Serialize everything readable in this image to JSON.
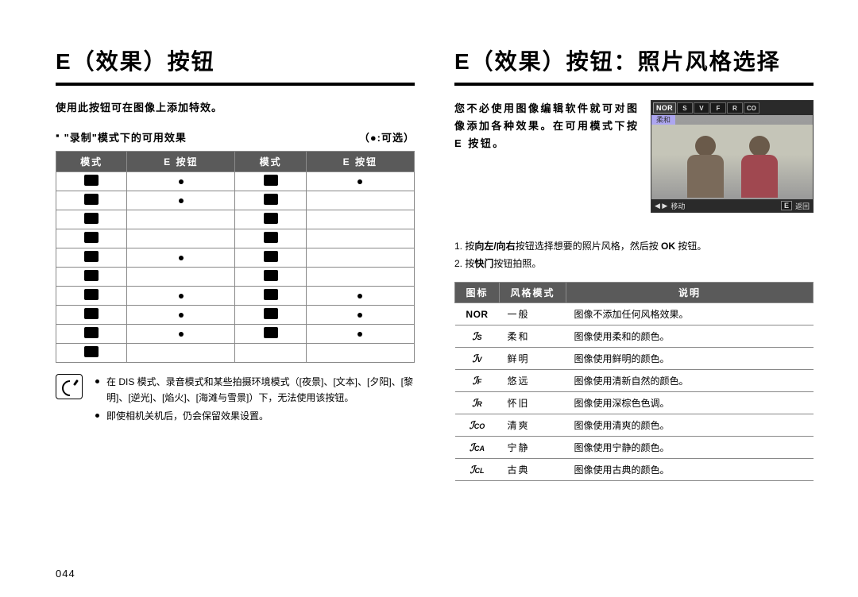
{
  "page_number": "044",
  "left": {
    "heading": "E（效果）按钮",
    "intro": "使用此按钮可在图像上添加特效。",
    "bullet_label": "\"录制\"模式下的可用效果",
    "bullet_right": "（●:可选）",
    "table_headers": [
      "模式",
      "E 按钮",
      "模式",
      "E 按钮"
    ],
    "rows": [
      {
        "l_icon": true,
        "l_dot": true,
        "r_icon": true,
        "r_dot": true
      },
      {
        "l_icon": true,
        "l_dot": true,
        "r_icon": true,
        "r_dot": false
      },
      {
        "l_icon": true,
        "l_dot": false,
        "r_icon": true,
        "r_dot": false
      },
      {
        "l_icon": true,
        "l_dot": false,
        "r_icon": true,
        "r_dot": false
      },
      {
        "l_icon": true,
        "l_dot": true,
        "r_icon": true,
        "r_dot": false
      },
      {
        "l_icon": true,
        "l_dot": false,
        "r_icon": true,
        "r_dot": false
      },
      {
        "l_icon": true,
        "l_dot": true,
        "r_icon": true,
        "r_dot": true
      },
      {
        "l_icon": true,
        "l_dot": true,
        "r_icon": true,
        "r_dot": true
      },
      {
        "l_icon": true,
        "l_dot": true,
        "r_icon": true,
        "r_dot": true
      },
      {
        "l_icon": true,
        "l_dot": false,
        "r_icon": false,
        "r_dot": false
      }
    ],
    "notes": [
      "在 DIS 模式、录音模式和某些拍摄环境模式（[夜景]、[文本]、[夕阳]、[黎明]、[逆光]、[焰火]、[海滩与雪景]）下，无法使用该按钮。",
      "即使相机关机后，仍会保留效果设置。"
    ]
  },
  "right": {
    "heading": "E（效果）按钮：照片风格选择",
    "desc": "您不必使用图像编辑软件就可对图像添加各种效果。在可用模式下按 E 按钮。",
    "preview_sublabel": "柔和",
    "preview_nor": "NOR",
    "preview_tabs": [
      "S",
      "V",
      "F",
      "R",
      "CO"
    ],
    "preview_move": "移动",
    "preview_back": "返回",
    "steps": [
      {
        "num": "1. ",
        "pre": "按",
        "bold": "向左/向右",
        "post": "按钮选择想要的照片风格，然后按 ",
        "bold2": "OK",
        "post2": " 按钮。"
      },
      {
        "num": "2. ",
        "pre": "按",
        "bold": "快门",
        "post": "按钮拍照。"
      }
    ],
    "style_headers": [
      "图标",
      "风格模式",
      "说明"
    ],
    "styles": [
      {
        "icon_type": "nor",
        "icon_text": "NOR",
        "name": "一般",
        "desc": "图像不添加任何风格效果。"
      },
      {
        "icon_type": "script",
        "icon_text": "S",
        "name": "柔和",
        "desc": "图像使用柔和的颜色。"
      },
      {
        "icon_type": "script",
        "icon_text": "V",
        "name": "鲜明",
        "desc": "图像使用鲜明的颜色。"
      },
      {
        "icon_type": "script",
        "icon_text": "F",
        "name": "悠远",
        "desc": "图像使用清新自然的颜色。"
      },
      {
        "icon_type": "script",
        "icon_text": "R",
        "name": "怀旧",
        "desc": "图像使用深棕色色调。"
      },
      {
        "icon_type": "script",
        "icon_text": "CO",
        "name": "清爽",
        "desc": "图像使用清爽的颜色。"
      },
      {
        "icon_type": "script",
        "icon_text": "CA",
        "name": "宁静",
        "desc": "图像使用宁静的颜色。"
      },
      {
        "icon_type": "script",
        "icon_text": "CL",
        "name": "古典",
        "desc": "图像使用古典的颜色。"
      }
    ]
  }
}
